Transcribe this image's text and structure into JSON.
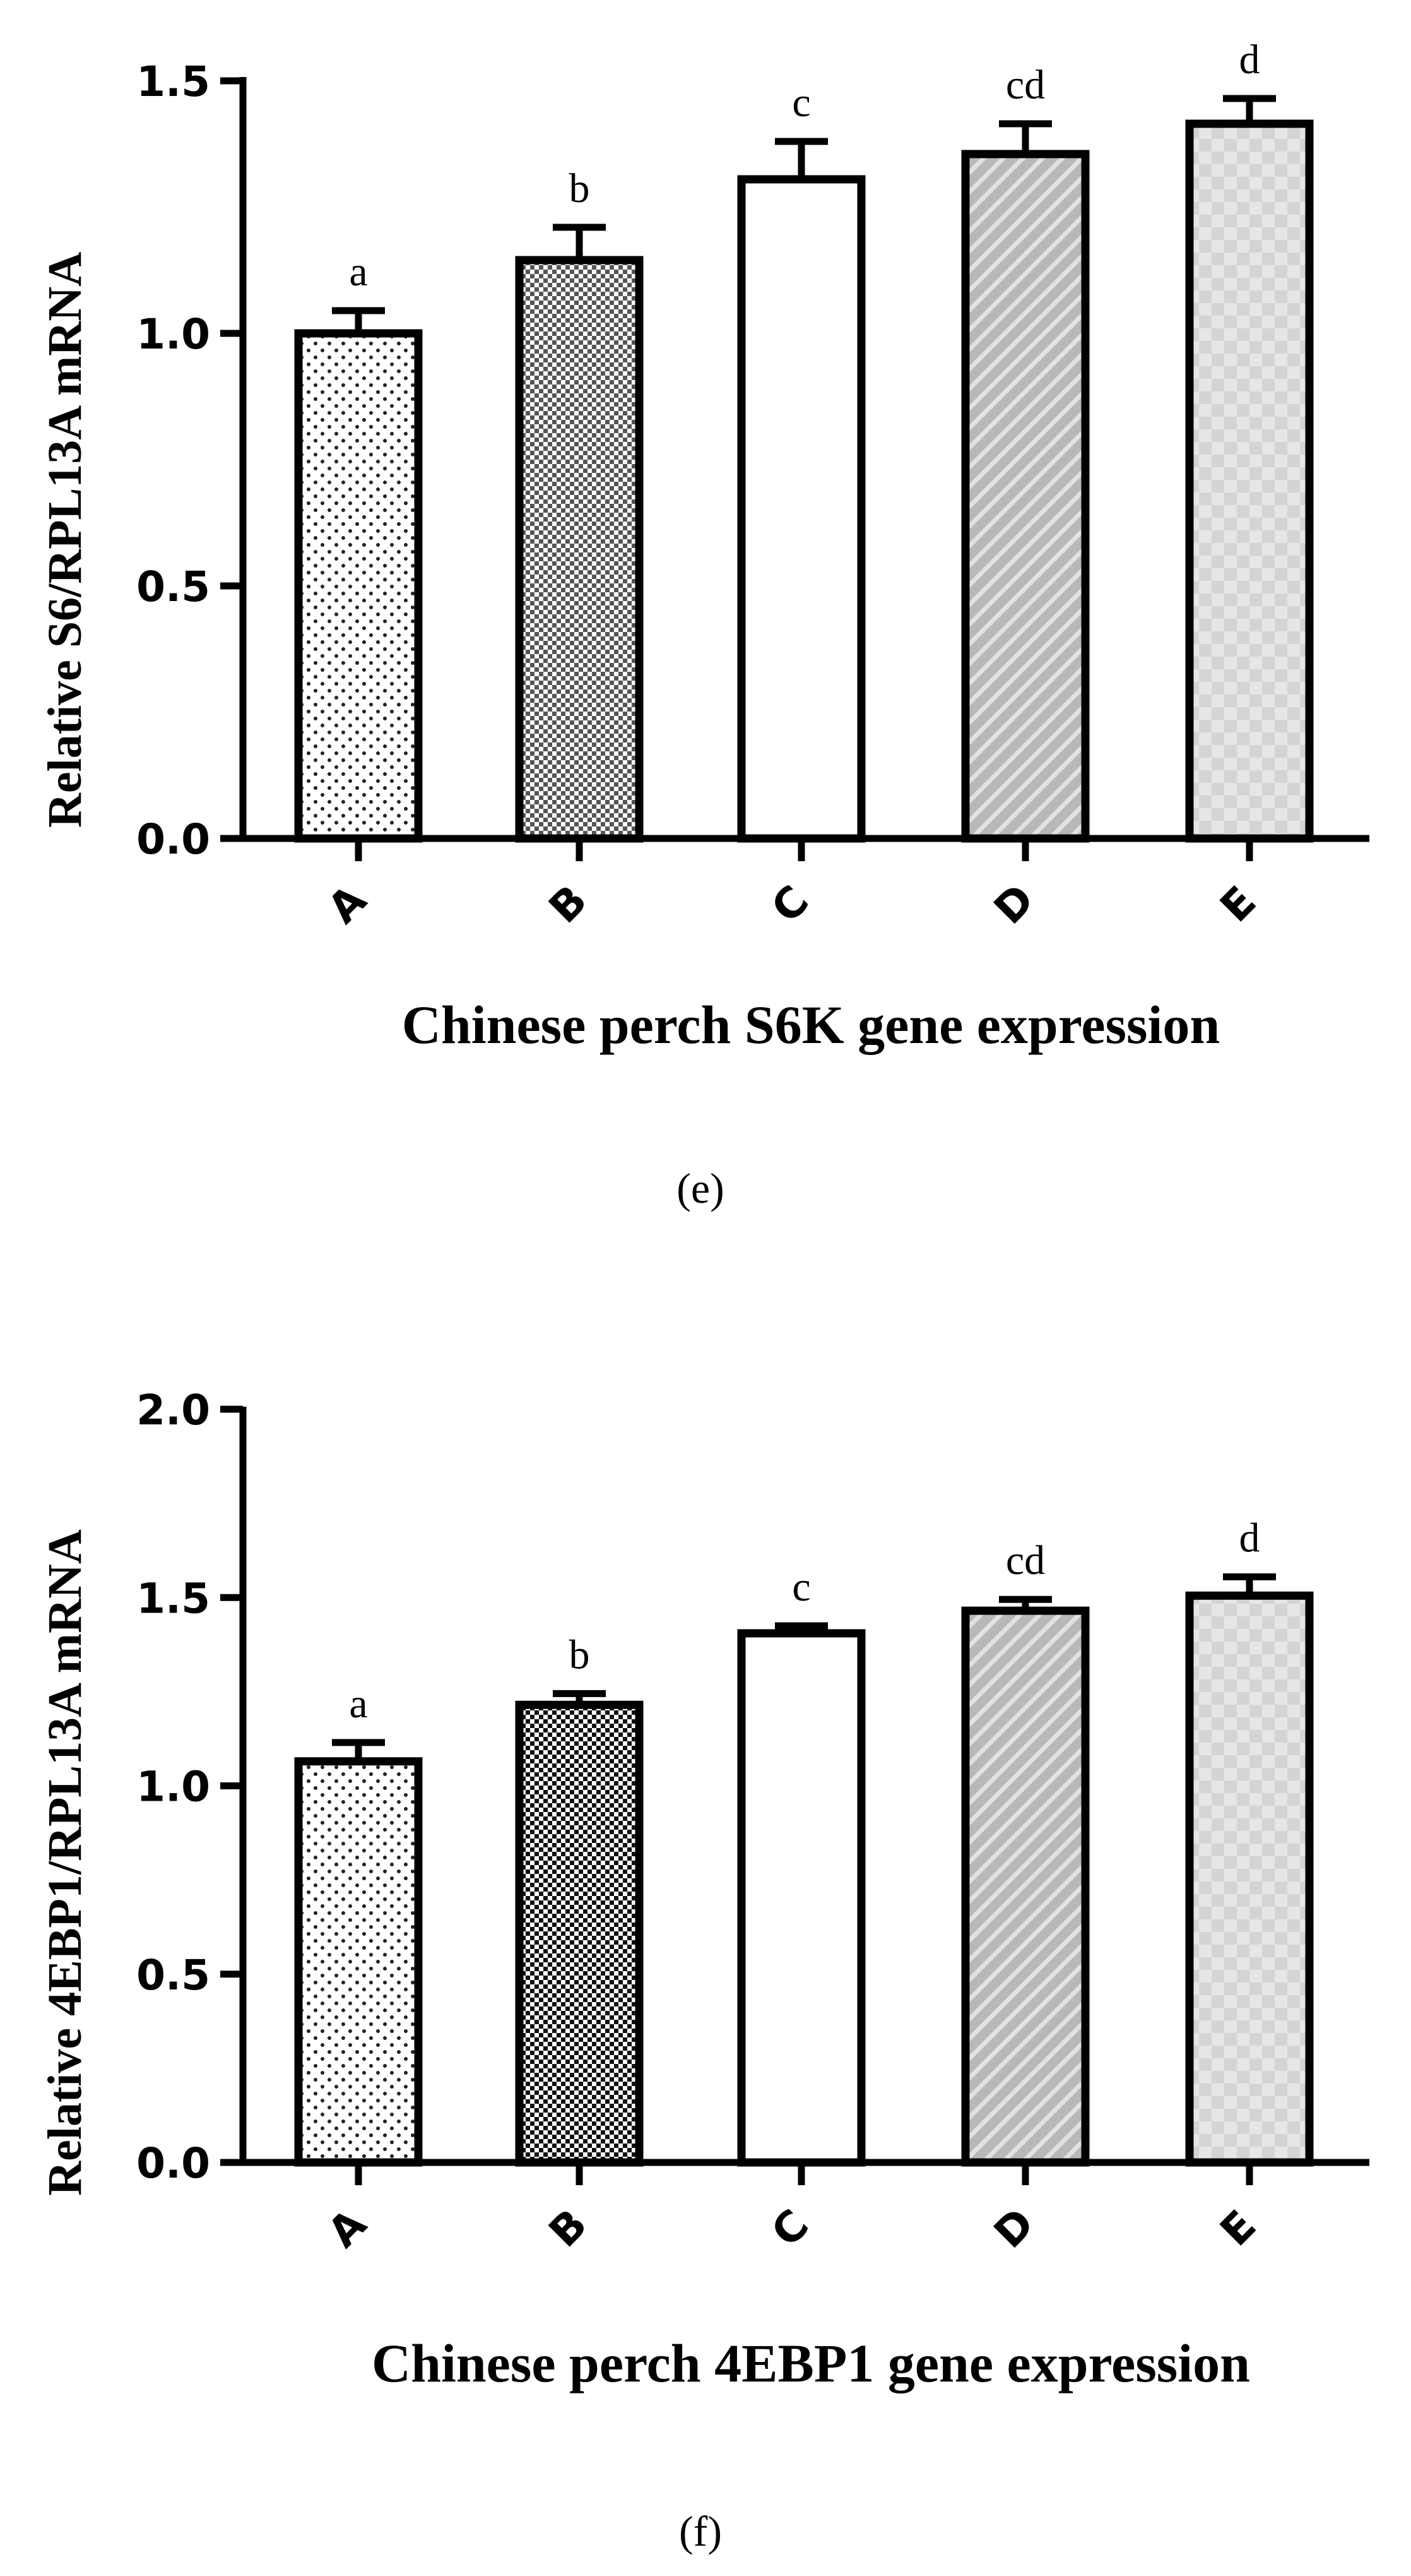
{
  "chart_data": [
    {
      "type": "bar",
      "categories": [
        "A",
        "B",
        "C",
        "D",
        "E"
      ],
      "values": [
        1.0,
        1.145,
        1.305,
        1.355,
        1.415
      ],
      "errors": [
        0.045,
        0.065,
        0.075,
        0.06,
        0.05
      ],
      "significance_letters": [
        "a",
        "b",
        "c",
        "cd",
        "d"
      ],
      "ylabel": "Relative S6/RPL13A mRNA",
      "xlabel": "Chinese perch S6K gene expression",
      "ylim": [
        0,
        1.5
      ],
      "yticks": [
        "0.0",
        "0.5",
        "1.0",
        "1.5"
      ],
      "grid": false,
      "panel_label": "(e)"
    },
    {
      "type": "bar",
      "categories": [
        "A",
        "B",
        "C",
        "D",
        "E"
      ],
      "values": [
        1.065,
        1.215,
        1.405,
        1.465,
        1.505
      ],
      "errors": [
        0.05,
        0.03,
        0.02,
        0.03,
        0.05
      ],
      "significance_letters": [
        "a",
        "b",
        "c",
        "cd",
        "d"
      ],
      "ylabel": "Relative 4EBP1/RPL13A mRNA",
      "xlabel": "Chinese perch 4EBP1 gene expression",
      "ylim": [
        0,
        2.0
      ],
      "yticks": [
        "0.0",
        "0.5",
        "1.0",
        "1.5",
        "2.0"
      ],
      "grid": false,
      "panel_label": "(f)"
    }
  ]
}
